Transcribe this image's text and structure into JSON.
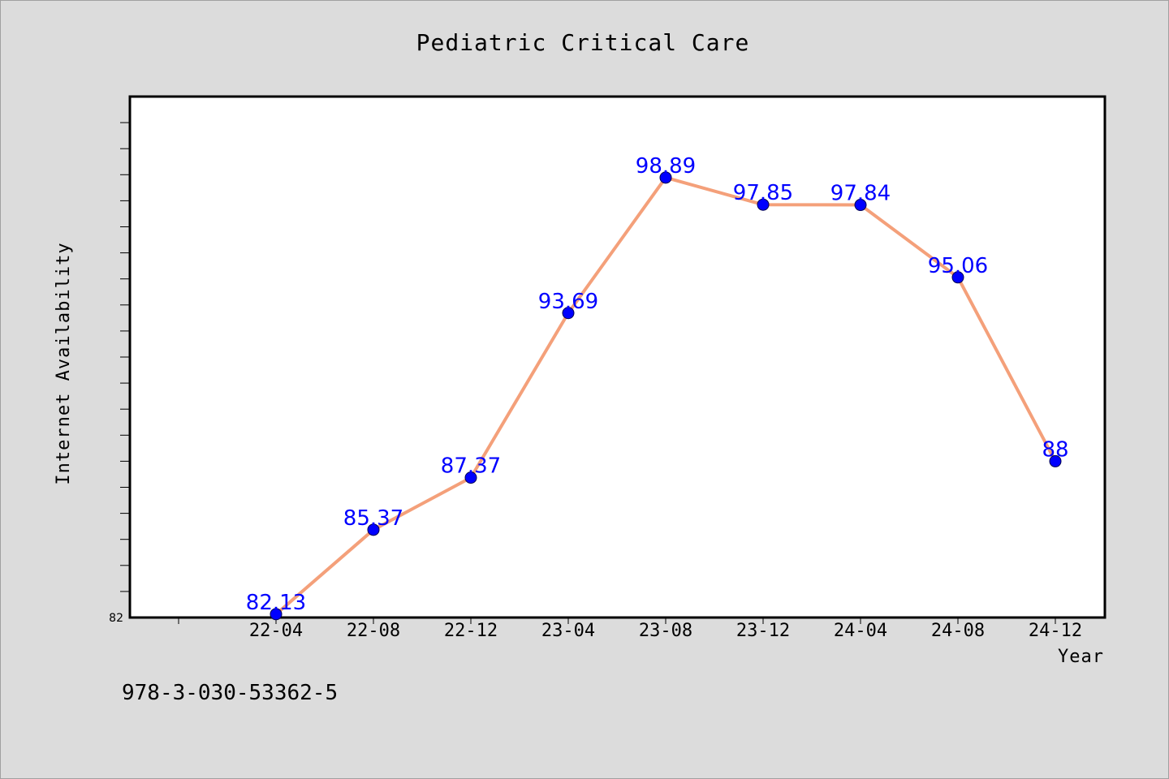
{
  "chart_data": {
    "type": "line",
    "title": "Pediatric Critical Care",
    "xlabel": "Year",
    "ylabel": "Internet Availability",
    "categories": [
      "22-04",
      "22-08",
      "22-12",
      "23-04",
      "23-08",
      "23-12",
      "24-04",
      "24-08",
      "24-12"
    ],
    "series": [
      {
        "values": [
          82.13,
          85.37,
          87.37,
          93.69,
          98.89,
          97.85,
          97.84,
          95.06,
          88
        ],
        "labels": [
          "82.13",
          "85.37",
          "87.37",
          "93.69",
          "98.89",
          "97.85",
          "97.84",
          "95.06",
          "88"
        ],
        "line_color": "#f4a07a",
        "marker_color": "#0000ff"
      }
    ],
    "ylim": [
      82,
      102
    ],
    "ytick_labels": [
      "82"
    ],
    "grid": false,
    "legend": "none",
    "background": "#ffffff",
    "figure_background": "#dcdcdc",
    "label_color": "#0000ff"
  },
  "footer": {
    "isbn": "978-3-030-53362-5"
  }
}
